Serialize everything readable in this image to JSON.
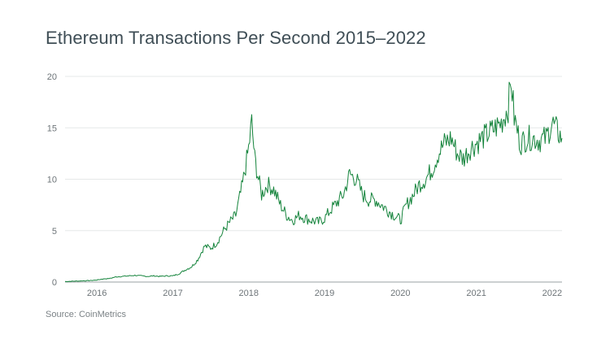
{
  "chart_data": {
    "type": "line",
    "title": "Ethereum Transactions Per Second 2015–2022",
    "xlabel": "",
    "ylabel": "",
    "ylim": [
      0,
      20
    ],
    "xlim": [
      2015.58,
      2022.13
    ],
    "grid": "horizontal",
    "legend": "none",
    "yticks": [
      "0",
      "5",
      "10",
      "15",
      "20"
    ],
    "xticks": [
      "2016",
      "2017",
      "2018",
      "2019",
      "2020",
      "2021",
      "2022"
    ],
    "series": [
      {
        "name": "Ethereum TPS",
        "color": "#15843c",
        "x": [
          2015.58,
          2015.67,
          2015.75,
          2015.83,
          2015.92,
          2016.0,
          2016.08,
          2016.17,
          2016.25,
          2016.33,
          2016.42,
          2016.5,
          2016.58,
          2016.67,
          2016.75,
          2016.83,
          2016.92,
          2017.0,
          2017.08,
          2017.17,
          2017.25,
          2017.33,
          2017.42,
          2017.5,
          2017.58,
          2017.67,
          2017.75,
          2017.83,
          2017.92,
          2018.0,
          2018.04,
          2018.08,
          2018.13,
          2018.17,
          2018.25,
          2018.33,
          2018.42,
          2018.5,
          2018.58,
          2018.67,
          2018.75,
          2018.83,
          2018.92,
          2019.0,
          2019.08,
          2019.17,
          2019.25,
          2019.33,
          2019.42,
          2019.5,
          2019.58,
          2019.67,
          2019.75,
          2019.83,
          2019.92,
          2020.0,
          2020.08,
          2020.17,
          2020.25,
          2020.33,
          2020.42,
          2020.5,
          2020.58,
          2020.67,
          2020.75,
          2020.83,
          2020.92,
          2021.0,
          2021.08,
          2021.17,
          2021.25,
          2021.33,
          2021.42,
          2021.46,
          2021.5,
          2021.58,
          2021.67,
          2021.75,
          2021.83,
          2021.92,
          2022.0,
          2022.08,
          2022.13
        ],
        "values": [
          0.05,
          0.08,
          0.1,
          0.12,
          0.15,
          0.2,
          0.3,
          0.35,
          0.5,
          0.55,
          0.6,
          0.65,
          0.6,
          0.55,
          0.6,
          0.55,
          0.6,
          0.6,
          0.8,
          1.2,
          1.5,
          2.2,
          3.5,
          3.3,
          3.8,
          5.0,
          5.8,
          6.5,
          9.5,
          13.0,
          15.5,
          12.0,
          10.0,
          8.5,
          9.5,
          9.0,
          7.5,
          6.5,
          6.0,
          6.5,
          6.2,
          6.0,
          5.8,
          6.2,
          7.0,
          7.8,
          8.5,
          10.5,
          10.0,
          8.5,
          8.0,
          8.0,
          7.5,
          7.0,
          6.5,
          6.0,
          7.5,
          8.5,
          9.5,
          10.0,
          11.0,
          12.5,
          13.5,
          14.0,
          12.5,
          12.0,
          13.0,
          13.5,
          14.0,
          14.5,
          15.0,
          15.5,
          17.0,
          19.7,
          16.0,
          13.5,
          14.0,
          14.0,
          13.8,
          14.0,
          15.5,
          14.5,
          14.0
        ]
      }
    ]
  },
  "source": "Source: CoinMetrics"
}
